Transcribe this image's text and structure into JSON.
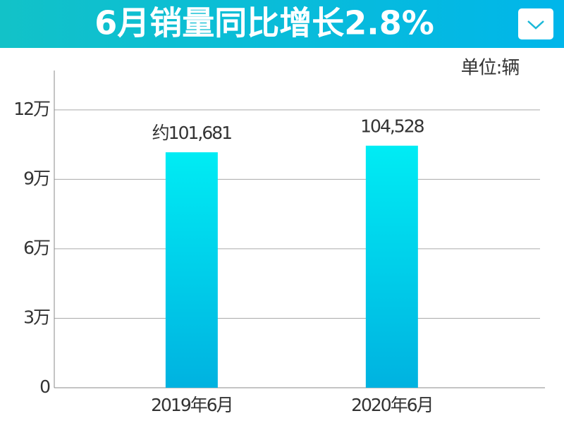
{
  "header": {
    "title": "6月销量同比增长2.8%"
  },
  "chart_data": {
    "type": "bar",
    "unit_label": "单位:辆",
    "categories": [
      "2019年6月",
      "2020年6月"
    ],
    "values": [
      101681,
      104528
    ],
    "value_labels": [
      "约101,681",
      "104,528"
    ],
    "colors": [
      "#00ecf4",
      "#00b2e0"
    ],
    "ylim": [
      0,
      137000
    ],
    "yticks": [
      0,
      {
        "value": 30000,
        "label": "3万"
      },
      {
        "value": 60000,
        "label": "6万"
      },
      {
        "value": 90000,
        "label": "9万"
      },
      {
        "value": 120000,
        "label": "12万"
      }
    ],
    "grid": true
  }
}
